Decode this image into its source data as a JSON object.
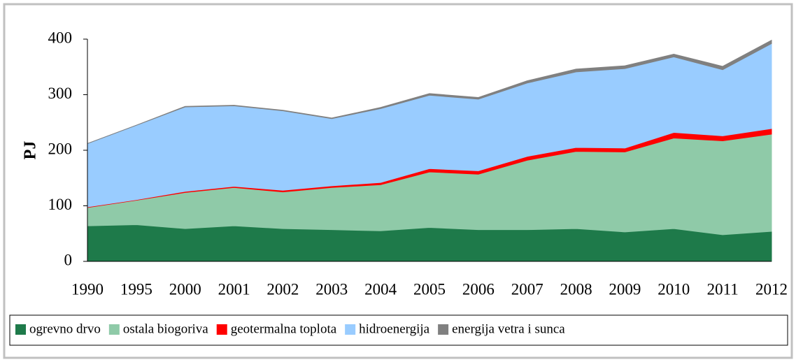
{
  "chart_data": {
    "type": "stacked_area",
    "y_label": "PJ",
    "categories": [
      "1990",
      "1995",
      "2000",
      "2001",
      "2002",
      "2003",
      "2004",
      "2005",
      "2006",
      "2007",
      "2008",
      "2009",
      "2010",
      "2011",
      "2012"
    ],
    "series": [
      {
        "name": "ogrevno drvo",
        "color": "#1e7a4a",
        "values": [
          64,
          66,
          59,
          64,
          59,
          57,
          55,
          61,
          57,
          57,
          59,
          53,
          59,
          48,
          54
        ]
      },
      {
        "name": "ostala biogoriva",
        "color": "#8fcaa8",
        "values": [
          33,
          44,
          65,
          69,
          66,
          76,
          83,
          100,
          100,
          125,
          139,
          144,
          163,
          169,
          175
        ]
      },
      {
        "name": "geotermalna toplota",
        "color": "#ff0000",
        "values": [
          1,
          1,
          2,
          2,
          3,
          3,
          4,
          6,
          6,
          7,
          7,
          7,
          10,
          9,
          10
        ]
      },
      {
        "name": "hidroenergija",
        "color": "#99ccff",
        "values": [
          114,
          134,
          152,
          145,
          143,
          121,
          133,
          132,
          129,
          132,
          136,
          143,
          136,
          119,
          153
        ]
      },
      {
        "name": "energija vetra i sunca",
        "color": "#808080",
        "values": [
          0,
          0,
          1,
          1,
          1,
          1,
          2,
          3,
          3,
          4,
          5,
          5,
          5,
          6,
          6
        ]
      }
    ],
    "ylim": [
      0,
      400
    ],
    "yticks": [
      0,
      100,
      200,
      300,
      400
    ],
    "legend": "bottom"
  }
}
